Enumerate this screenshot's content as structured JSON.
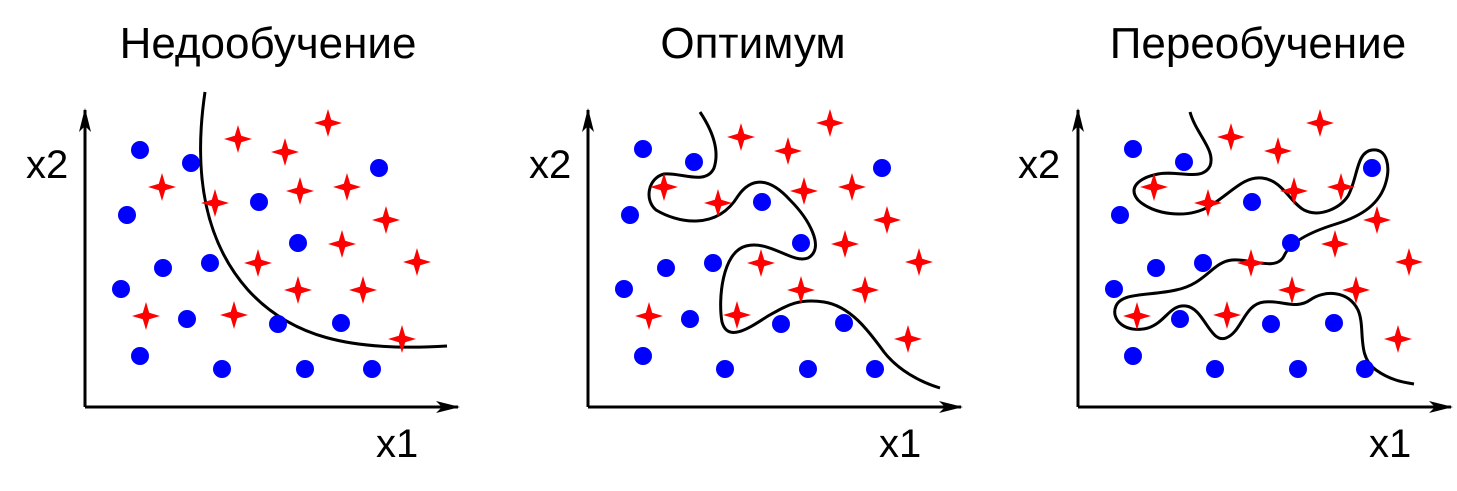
{
  "colors": {
    "class_a": "#0000ff",
    "class_b": "#ff0000",
    "boundary": "#000000",
    "axis": "#000000"
  },
  "panels": [
    {
      "title": "Недообучение",
      "xlabel": "x1",
      "ylabel": "x2",
      "boundary": "smooth curve (underfit)",
      "circles": [
        [
          140,
          150
        ],
        [
          191,
          163
        ],
        [
          127,
          215
        ],
        [
          259,
          202
        ],
        [
          379,
          168
        ],
        [
          298,
          243
        ],
        [
          163,
          268
        ],
        [
          210,
          263
        ],
        [
          121,
          289
        ],
        [
          187,
          319
        ],
        [
          278,
          324
        ],
        [
          341,
          323
        ],
        [
          140,
          356
        ],
        [
          222,
          369
        ],
        [
          305,
          369
        ],
        [
          372,
          369
        ]
      ],
      "stars": [
        [
          238,
          139
        ],
        [
          328,
          123
        ],
        [
          285,
          152
        ],
        [
          162,
          187
        ],
        [
          215,
          203
        ],
        [
          300,
          191
        ],
        [
          347,
          187
        ],
        [
          386,
          220
        ],
        [
          258,
          263
        ],
        [
          342,
          244
        ],
        [
          417,
          262
        ],
        [
          298,
          290
        ],
        [
          363,
          290
        ],
        [
          146,
          316
        ],
        [
          234,
          315
        ],
        [
          402,
          339
        ]
      ]
    },
    {
      "title": "Оптимум",
      "xlabel": "x1",
      "ylabel": "x2",
      "boundary": "moderately wavy curve (good fit)",
      "circles": [
        [
          643,
          149
        ],
        [
          694,
          162
        ],
        [
          630,
          215
        ],
        [
          762,
          202
        ],
        [
          882,
          168
        ],
        [
          801,
          243
        ],
        [
          666,
          268
        ],
        [
          713,
          263
        ],
        [
          624,
          289
        ],
        [
          690,
          319
        ],
        [
          781,
          324
        ],
        [
          844,
          323
        ],
        [
          643,
          356
        ],
        [
          725,
          369
        ],
        [
          808,
          369
        ],
        [
          875,
          369
        ]
      ],
      "stars": [
        [
          741,
          137
        ],
        [
          830,
          123
        ],
        [
          788,
          151
        ],
        [
          664,
          187
        ],
        [
          718,
          203
        ],
        [
          804,
          191
        ],
        [
          852,
          187
        ],
        [
          887,
          220
        ],
        [
          761,
          263
        ],
        [
          845,
          244
        ],
        [
          919,
          262
        ],
        [
          801,
          290
        ],
        [
          865,
          290
        ],
        [
          649,
          316
        ],
        [
          737,
          315
        ],
        [
          908,
          339
        ]
      ]
    },
    {
      "title": "Переобучение",
      "xlabel": "x1",
      "ylabel": "x2",
      "boundary": "highly wiggly curve (overfit)",
      "circles": [
        [
          1133,
          149
        ],
        [
          1184,
          162
        ],
        [
          1120,
          215
        ],
        [
          1252,
          202
        ],
        [
          1372,
          168
        ],
        [
          1291,
          243
        ],
        [
          1156,
          268
        ],
        [
          1203,
          263
        ],
        [
          1114,
          289
        ],
        [
          1180,
          319
        ],
        [
          1271,
          324
        ],
        [
          1334,
          323
        ],
        [
          1133,
          356
        ],
        [
          1215,
          369
        ],
        [
          1298,
          369
        ],
        [
          1365,
          369
        ]
      ],
      "stars": [
        [
          1231,
          137
        ],
        [
          1320,
          123
        ],
        [
          1278,
          151
        ],
        [
          1154,
          187
        ],
        [
          1208,
          203
        ],
        [
          1294,
          191
        ],
        [
          1341,
          187
        ],
        [
          1377,
          220
        ],
        [
          1251,
          263
        ],
        [
          1335,
          244
        ],
        [
          1409,
          262
        ],
        [
          1292,
          290
        ],
        [
          1356,
          290
        ],
        [
          1137,
          316
        ],
        [
          1227,
          315
        ],
        [
          1398,
          339
        ]
      ]
    }
  ]
}
